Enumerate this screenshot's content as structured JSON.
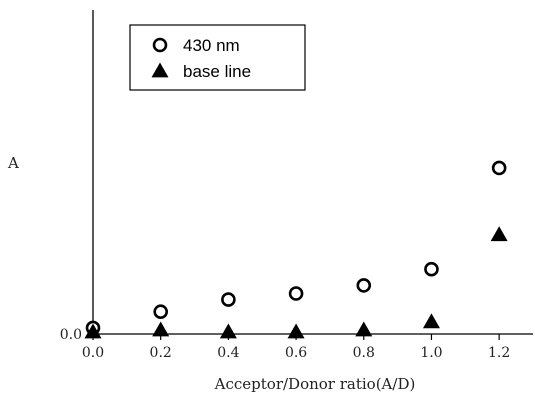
{
  "chart_data": {
    "type": "scatter",
    "xlabel": "Acceptor/Donor ratio(A/D)",
    "ylabel": "A",
    "x_ticks": [
      "0.0",
      "0.2",
      "0.4",
      "0.6",
      "0.8",
      "1.0",
      "1.2"
    ],
    "y_ticks": [
      "0.0"
    ],
    "xlim": [
      0,
      1.3
    ],
    "ylim": [
      0,
      1.6
    ],
    "legend_position": "top-left",
    "series": [
      {
        "name": "430 nm",
        "marker": "open-circle",
        "color": "#000000",
        "points": [
          [
            0.0,
            0.03
          ],
          [
            0.2,
            0.11
          ],
          [
            0.4,
            0.17
          ],
          [
            0.6,
            0.2
          ],
          [
            0.8,
            0.24
          ],
          [
            1.0,
            0.32
          ],
          [
            1.2,
            0.82
          ]
        ]
      },
      {
        "name": "base line",
        "marker": "filled-triangle",
        "color": "#000000",
        "points": [
          [
            0.0,
            0.01
          ],
          [
            0.2,
            0.02
          ],
          [
            0.4,
            0.01
          ],
          [
            0.6,
            0.01
          ],
          [
            0.8,
            0.02
          ],
          [
            1.0,
            0.06
          ],
          [
            1.2,
            0.49
          ]
        ]
      }
    ]
  }
}
